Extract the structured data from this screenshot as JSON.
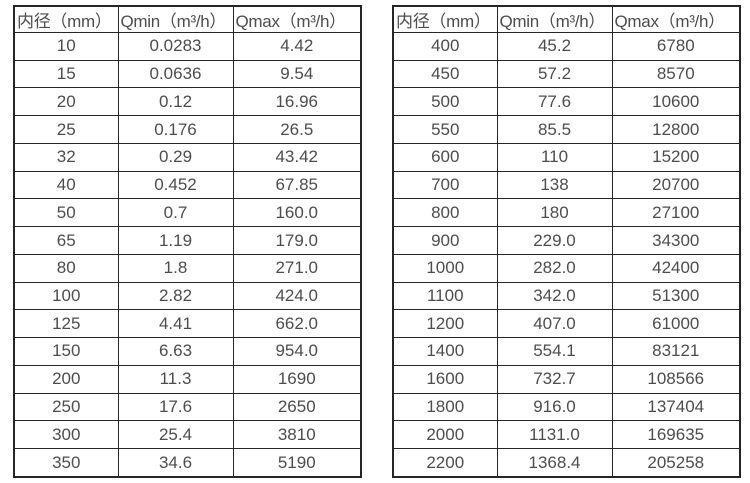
{
  "colors": {
    "border": "#262626",
    "text": "#4d4d4d",
    "background": "#ffffff"
  },
  "tables": [
    {
      "name": "small-diameters",
      "headers": [
        "内径（mm）",
        "Qmin（m³/h）",
        "Qmax（m³/h）"
      ],
      "rows": [
        [
          "10",
          "0.0283",
          "4.42"
        ],
        [
          "15",
          "0.0636",
          "9.54"
        ],
        [
          "20",
          "0.12",
          "16.96"
        ],
        [
          "25",
          "0.176",
          "26.5"
        ],
        [
          "32",
          "0.29",
          "43.42"
        ],
        [
          "40",
          "0.452",
          "67.85"
        ],
        [
          "50",
          "0.7",
          "160.0"
        ],
        [
          "65",
          "1.19",
          "179.0"
        ],
        [
          "80",
          "1.8",
          "271.0"
        ],
        [
          "100",
          "2.82",
          "424.0"
        ],
        [
          "125",
          "4.41",
          "662.0"
        ],
        [
          "150",
          "6.63",
          "954.0"
        ],
        [
          "200",
          "11.3",
          "1690"
        ],
        [
          "250",
          "17.6",
          "2650"
        ],
        [
          "300",
          "25.4",
          "3810"
        ],
        [
          "350",
          "34.6",
          "5190"
        ]
      ]
    },
    {
      "name": "large-diameters",
      "headers": [
        "内径（mm）",
        "Qmin（m³/h）",
        "Qmax（m³/h）"
      ],
      "rows": [
        [
          "400",
          "45.2",
          "6780"
        ],
        [
          "450",
          "57.2",
          "8570"
        ],
        [
          "500",
          "77.6",
          "10600"
        ],
        [
          "550",
          "85.5",
          "12800"
        ],
        [
          "600",
          "110",
          "15200"
        ],
        [
          "700",
          "138",
          "20700"
        ],
        [
          "800",
          "180",
          "27100"
        ],
        [
          "900",
          "229.0",
          "34300"
        ],
        [
          "1000",
          "282.0",
          "42400"
        ],
        [
          "1100",
          "342.0",
          "51300"
        ],
        [
          "1200",
          "407.0",
          "61000"
        ],
        [
          "1400",
          "554.1",
          "83121"
        ],
        [
          "1600",
          "732.7",
          "108566"
        ],
        [
          "1800",
          "916.0",
          "137404"
        ],
        [
          "2000",
          "1131.0",
          "169635"
        ],
        [
          "2200",
          "1368.4",
          "205258"
        ]
      ]
    }
  ]
}
